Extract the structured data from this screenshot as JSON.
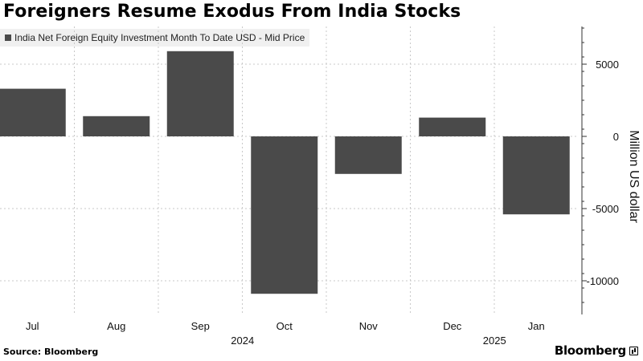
{
  "title": "Foreigners Resume Exodus From India Stocks",
  "source": "Source: Bloomberg",
  "brand": "Bloomberg",
  "colors": {
    "bar": "#4a4a4a",
    "grid": "#c8c8c8",
    "axis": "#333333",
    "legend_bg": "#f0f0f0"
  },
  "chart_data": {
    "type": "bar",
    "categories": [
      "Jul",
      "Aug",
      "Sep",
      "Oct",
      "Nov",
      "Dec",
      "Jan"
    ],
    "year_labels": [
      {
        "label": "2024",
        "under": "Oct"
      },
      {
        "label": "2025",
        "under": "Jan"
      }
    ],
    "series": [
      {
        "name": "India Net Foreign Equity Investment Month To Date USD - Mid Price",
        "values": [
          3300,
          1400,
          5900,
          -10900,
          -2600,
          1300,
          -5400
        ]
      }
    ],
    "ylabel": "Million US dollar",
    "ylim": [
      -12500,
      7500
    ],
    "yticks": [
      5000,
      0,
      -5000,
      -10000
    ],
    "ytick_labels": [
      "5000",
      "0",
      "-5000",
      "-10000"
    ],
    "yaxis_position": "right",
    "grid": true,
    "legend_position": "top-left"
  }
}
